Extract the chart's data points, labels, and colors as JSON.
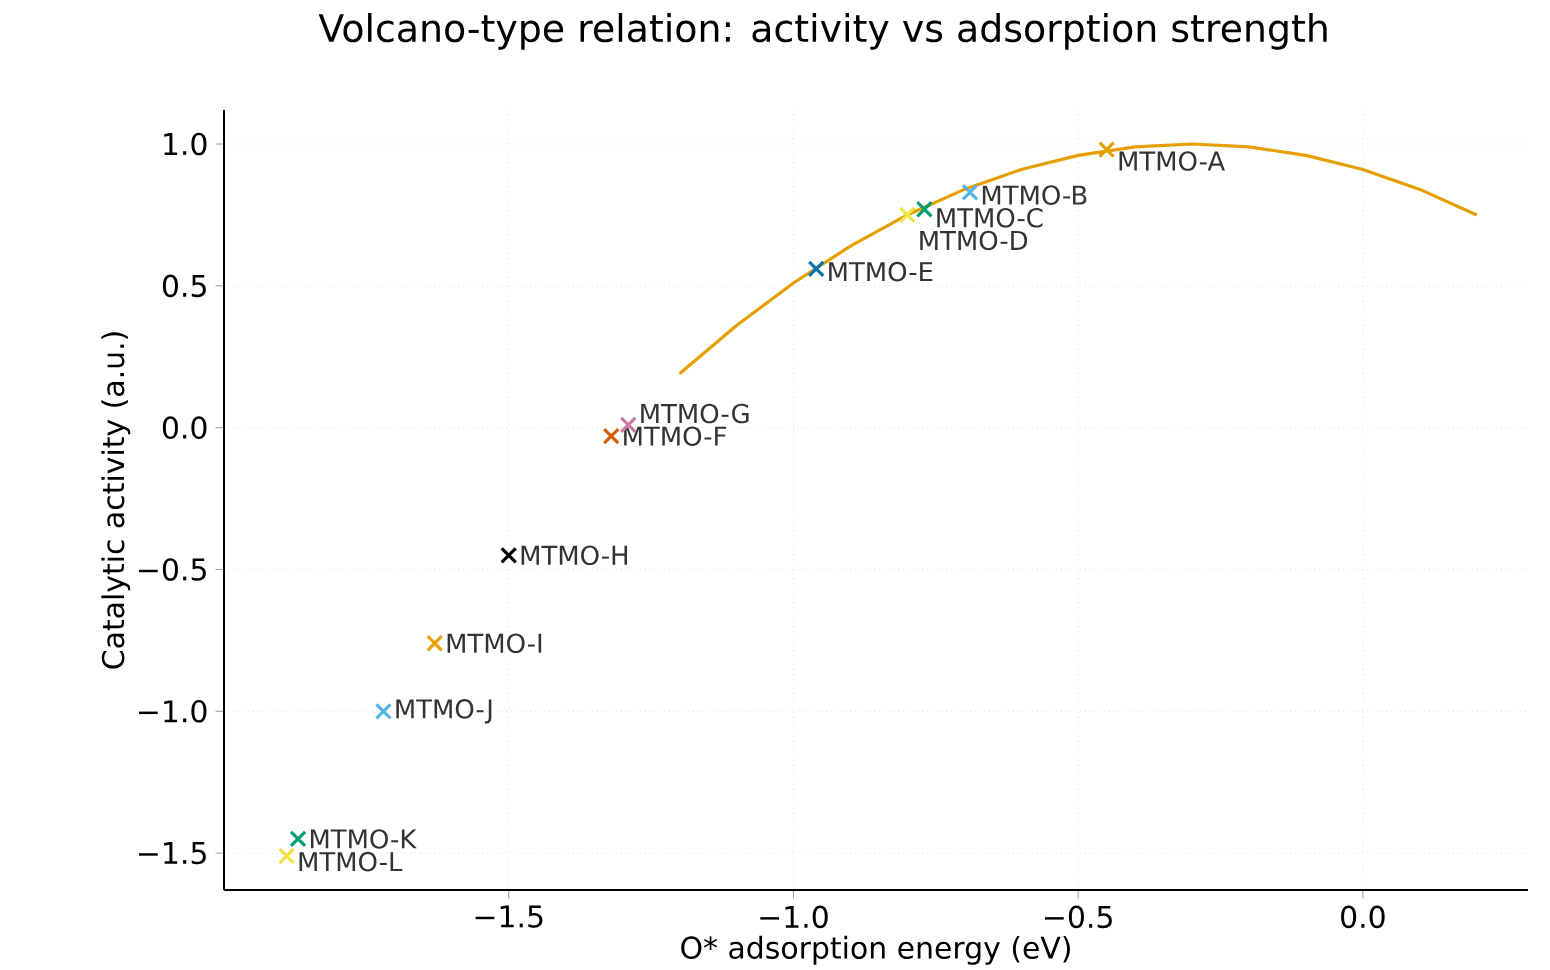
{
  "chart_data": {
    "type": "scatter",
    "title": "Volcano-type relation: activity vs adsorption strength",
    "xlabel": "O* adsorption energy (eV)",
    "ylabel": "Catalytic activity (a.u.)",
    "xlim": [
      -2.0,
      0.29
    ],
    "ylim": [
      -1.63,
      1.12
    ],
    "xticks": [
      {
        "value": -1.5,
        "label": "−1.5"
      },
      {
        "value": -1.0,
        "label": "−1.0"
      },
      {
        "value": -0.5,
        "label": "−0.5"
      },
      {
        "value": 0.0,
        "label": "0.0"
      }
    ],
    "yticks": [
      {
        "value": -1.5,
        "label": "−1.5"
      },
      {
        "value": -1.0,
        "label": "−1.0"
      },
      {
        "value": -0.5,
        "label": "−0.5"
      },
      {
        "value": 0.0,
        "label": "0.0"
      },
      {
        "value": 0.5,
        "label": "0.5"
      },
      {
        "value": 1.0,
        "label": "1.0"
      }
    ],
    "grid": true,
    "marker": "cross",
    "series": [
      {
        "name": "MTMO-A",
        "color": "#e69f00",
        "x": [
          -0.45
        ],
        "values": [
          0.98
        ]
      },
      {
        "name": "MTMO-B",
        "color": "#56b4e9",
        "x": [
          -0.69
        ],
        "values": [
          0.83
        ]
      },
      {
        "name": "MTMO-C",
        "color": "#009e73",
        "x": [
          -0.77
        ],
        "values": [
          0.77
        ]
      },
      {
        "name": "MTMO-D",
        "color": "#f0e442",
        "x": [
          -0.8
        ],
        "values": [
          0.75
        ]
      },
      {
        "name": "MTMO-E",
        "color": "#0072b2",
        "x": [
          -0.96
        ],
        "values": [
          0.56
        ]
      },
      {
        "name": "MTMO-F",
        "color": "#d55e00",
        "x": [
          -1.32
        ],
        "values": [
          -0.03
        ]
      },
      {
        "name": "MTMO-G",
        "color": "#cc79a7",
        "x": [
          -1.29
        ],
        "values": [
          0.01
        ]
      },
      {
        "name": "MTMO-H",
        "color": "#000000",
        "x": [
          -1.5
        ],
        "values": [
          -0.45
        ]
      },
      {
        "name": "MTMO-I",
        "color": "#e69f00",
        "x": [
          -1.63
        ],
        "values": [
          -0.76
        ]
      },
      {
        "name": "MTMO-J",
        "color": "#56b4e9",
        "x": [
          -1.72
        ],
        "values": [
          -1.0
        ]
      },
      {
        "name": "MTMO-K",
        "color": "#009e73",
        "x": [
          -1.87
        ],
        "values": [
          -1.45
        ]
      },
      {
        "name": "MTMO-L",
        "color": "#f0e442",
        "x": [
          -1.89
        ],
        "values": [
          -1.51
        ]
      },
      {
        "type": "line",
        "marker": "none",
        "color": "#e69f00",
        "x": [
          -1.2,
          -1.1,
          -1.0,
          -0.9,
          -0.8,
          -0.7,
          -0.6,
          -0.5,
          -0.4,
          -0.3,
          -0.2,
          -0.1,
          0.0,
          0.1,
          0.2
        ],
        "values": [
          0.19,
          0.36,
          0.51,
          0.64,
          0.75,
          0.84,
          0.91,
          0.96,
          0.99,
          1.0,
          0.99,
          0.96,
          0.91,
          0.84,
          0.75
        ]
      }
    ]
  }
}
